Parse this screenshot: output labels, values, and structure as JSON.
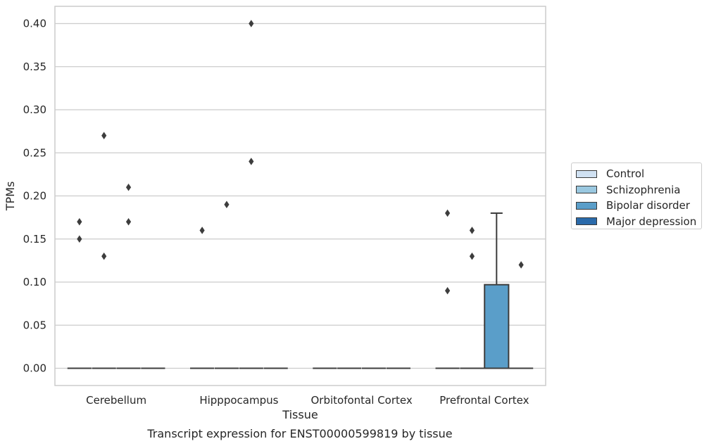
{
  "chart_data": {
    "type": "box",
    "title": "Transcript expression for ENST00000599819 by tissue",
    "xlabel": "Tissue",
    "ylabel": "TPMs",
    "ylim": [
      -0.02,
      0.42
    ],
    "yticks": [
      "0.00",
      "0.05",
      "0.10",
      "0.15",
      "0.20",
      "0.25",
      "0.30",
      "0.35",
      "0.40"
    ],
    "grid": "horizontal",
    "legend_position": "right",
    "categories": [
      "Cerebellum",
      "Hipppocampus",
      "Orbitofontal Cortex",
      "Prefrontal Cortex"
    ],
    "series": [
      {
        "name": "Control",
        "color": "#d0e1f2",
        "boxes": [
          {
            "category": "Cerebellum",
            "q1": 0,
            "median": 0,
            "q3": 0,
            "whisker_low": 0,
            "whisker_high": 0,
            "outliers": [
              0.17,
              0.15
            ]
          },
          {
            "category": "Hipppocampus",
            "q1": 0,
            "median": 0,
            "q3": 0,
            "whisker_low": 0,
            "whisker_high": 0,
            "outliers": [
              0.16
            ]
          },
          {
            "category": "Orbitofontal Cortex",
            "q1": 0,
            "median": 0,
            "q3": 0,
            "whisker_low": 0,
            "whisker_high": 0,
            "outliers": []
          },
          {
            "category": "Prefrontal Cortex",
            "q1": 0,
            "median": 0,
            "q3": 0,
            "whisker_low": 0,
            "whisker_high": 0,
            "outliers": [
              0.18,
              0.09
            ]
          }
        ]
      },
      {
        "name": "Schizophrenia",
        "color": "#9ac8e0",
        "boxes": [
          {
            "category": "Cerebellum",
            "q1": 0,
            "median": 0,
            "q3": 0,
            "whisker_low": 0,
            "whisker_high": 0,
            "outliers": [
              0.27,
              0.13
            ]
          },
          {
            "category": "Hipppocampus",
            "q1": 0,
            "median": 0,
            "q3": 0,
            "whisker_low": 0,
            "whisker_high": 0,
            "outliers": [
              0.19
            ]
          },
          {
            "category": "Orbitofontal Cortex",
            "q1": 0,
            "median": 0,
            "q3": 0,
            "whisker_low": 0,
            "whisker_high": 0,
            "outliers": []
          },
          {
            "category": "Prefrontal Cortex",
            "q1": 0,
            "median": 0,
            "q3": 0,
            "whisker_low": 0,
            "whisker_high": 0,
            "outliers": [
              0.16,
              0.13
            ]
          }
        ]
      },
      {
        "name": "Bipolar disorder",
        "color": "#5a9ec9",
        "boxes": [
          {
            "category": "Cerebellum",
            "q1": 0,
            "median": 0,
            "q3": 0,
            "whisker_low": 0,
            "whisker_high": 0,
            "outliers": [
              0.21,
              0.17
            ]
          },
          {
            "category": "Hipppocampus",
            "q1": 0,
            "median": 0,
            "q3": 0,
            "whisker_low": 0,
            "whisker_high": 0,
            "outliers": [
              0.4,
              0.24
            ]
          },
          {
            "category": "Orbitofontal Cortex",
            "q1": 0,
            "median": 0,
            "q3": 0,
            "whisker_low": 0,
            "whisker_high": 0,
            "outliers": []
          },
          {
            "category": "Prefrontal Cortex",
            "q1": 0,
            "median": 0,
            "q3": 0.097,
            "whisker_low": 0,
            "whisker_high": 0.18,
            "outliers": []
          }
        ]
      },
      {
        "name": "Major depression",
        "color": "#2a6aaa",
        "boxes": [
          {
            "category": "Cerebellum",
            "q1": 0,
            "median": 0,
            "q3": 0,
            "whisker_low": 0,
            "whisker_high": 0,
            "outliers": []
          },
          {
            "category": "Hipppocampus",
            "q1": 0,
            "median": 0,
            "q3": 0,
            "whisker_low": 0,
            "whisker_high": 0,
            "outliers": []
          },
          {
            "category": "Orbitofontal Cortex",
            "q1": 0,
            "median": 0,
            "q3": 0,
            "whisker_low": 0,
            "whisker_high": 0,
            "outliers": []
          },
          {
            "category": "Prefrontal Cortex",
            "q1": 0,
            "median": 0,
            "q3": 0,
            "whisker_low": 0,
            "whisker_high": 0,
            "outliers": [
              0.12
            ]
          }
        ]
      }
    ]
  }
}
